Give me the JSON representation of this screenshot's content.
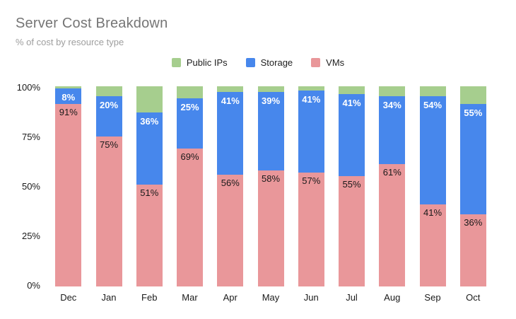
{
  "header": {
    "title": "Server Cost Breakdown",
    "subtitle": "% of cost by resource type"
  },
  "legend": {
    "items": [
      {
        "label": "Public IPs",
        "color": "#a6ce8e"
      },
      {
        "label": "Storage",
        "color": "#4787ec"
      },
      {
        "label": "VMs",
        "color": "#e9979a"
      }
    ]
  },
  "chart_data": {
    "type": "bar",
    "stacked": true,
    "unit": "%",
    "title": "Server Cost Breakdown",
    "subtitle": "% of cost by resource type",
    "xlabel": "",
    "ylabel": "",
    "categories": [
      "Dec",
      "Jan",
      "Feb",
      "Mar",
      "Apr",
      "May",
      "Jun",
      "Jul",
      "Aug",
      "Sep",
      "Oct"
    ],
    "series": [
      {
        "name": "VMs",
        "color": "#e9979a",
        "label_color": "#1a1a1a",
        "labels_shown": true,
        "values": [
          91,
          75,
          51,
          69,
          56,
          58,
          57,
          55,
          61,
          41,
          36
        ]
      },
      {
        "name": "Storage",
        "color": "#4787ec",
        "label_color": "#ffffff",
        "labels_shown": true,
        "values": [
          8,
          20,
          36,
          25,
          41,
          39,
          41,
          41,
          34,
          54,
          55
        ]
      },
      {
        "name": "Public IPs",
        "color": "#a6ce8e",
        "labels_shown": false,
        "values": [
          1,
          5,
          13,
          6,
          3,
          3,
          2,
          4,
          5,
          5,
          9
        ]
      }
    ],
    "y_ticks": [
      "0%",
      "25%",
      "50%",
      "75%",
      "100%"
    ],
    "ylim": [
      0,
      100
    ],
    "grid": false,
    "legend_position": "top-center"
  }
}
